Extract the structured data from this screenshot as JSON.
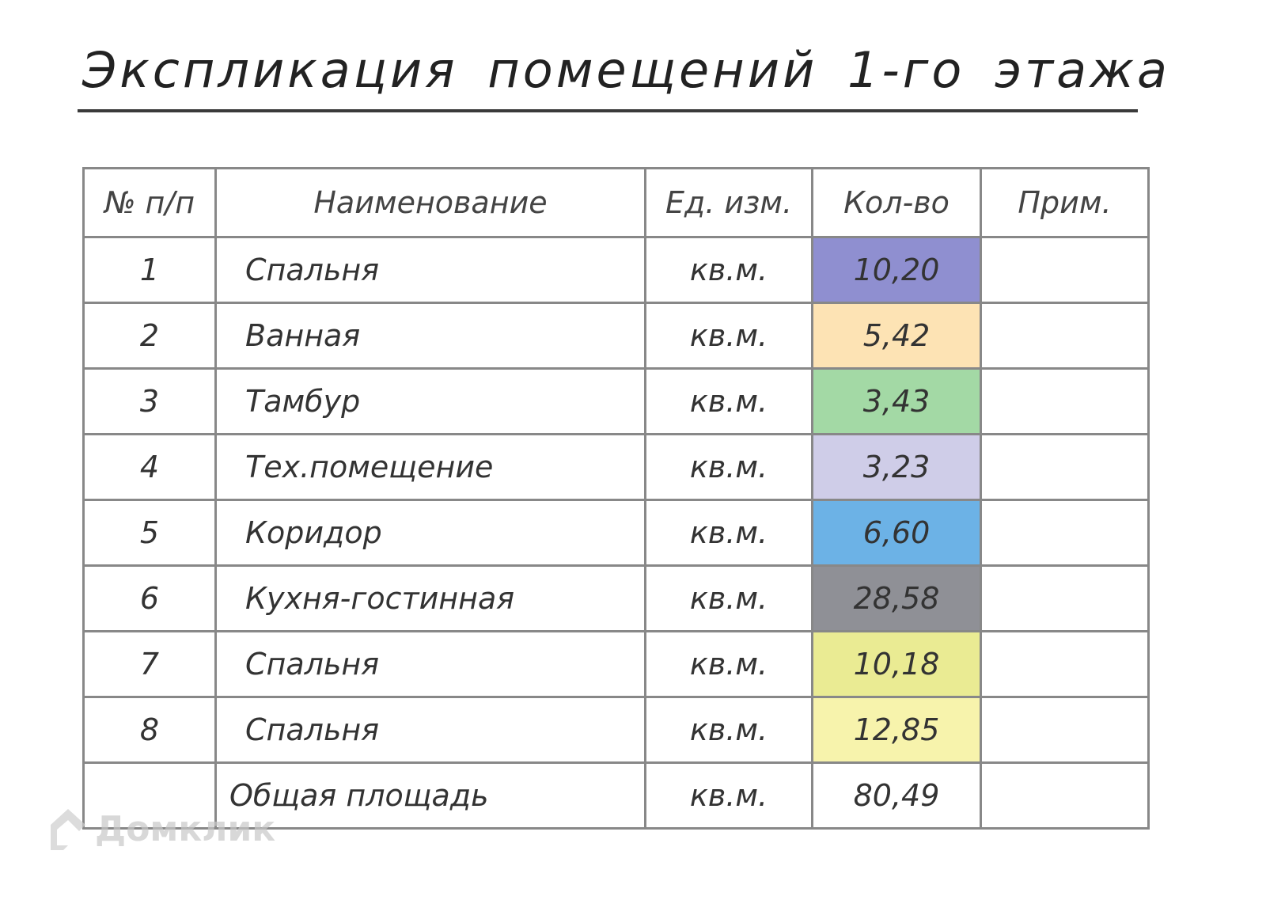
{
  "title": "Экспликация помещений 1-го этажа",
  "table": {
    "headers": [
      "№ п/п",
      "Наименование",
      "Ед. изм.",
      "Кол-во",
      "Прим."
    ],
    "rows": [
      {
        "num": "1",
        "name": "Спальня",
        "unit": "кв.м.",
        "qty": "10,20",
        "color": "#8f8fd0",
        "note": ""
      },
      {
        "num": "2",
        "name": "Ванная",
        "unit": "кв.м.",
        "qty": "5,42",
        "color": "#fde3b4",
        "note": ""
      },
      {
        "num": "3",
        "name": "Тамбур",
        "unit": "кв.м.",
        "qty": "3,43",
        "color": "#a3d9a5",
        "note": ""
      },
      {
        "num": "4",
        "name": "Тех.помещение",
        "unit": "кв.м.",
        "qty": "3,23",
        "color": "#cfcde8",
        "note": ""
      },
      {
        "num": "5",
        "name": "Коридор",
        "unit": "кв.м.",
        "qty": "6,60",
        "color": "#6cb2e6",
        "note": ""
      },
      {
        "num": "6",
        "name": "Кухня-гостинная",
        "unit": "кв.м.",
        "qty": "28,58",
        "color": "#8f9096",
        "note": ""
      },
      {
        "num": "7",
        "name": "Спальня",
        "unit": "кв.м.",
        "qty": "10,18",
        "color": "#eaeb93",
        "note": ""
      },
      {
        "num": "8",
        "name": "Спальня",
        "unit": "кв.м.",
        "qty": "12,85",
        "color": "#f7f3ac",
        "note": ""
      }
    ],
    "total": {
      "num": "",
      "name": "Общая площадь",
      "unit": "кв.м.",
      "qty": "80,49",
      "note": ""
    }
  },
  "watermark": "Домклик"
}
